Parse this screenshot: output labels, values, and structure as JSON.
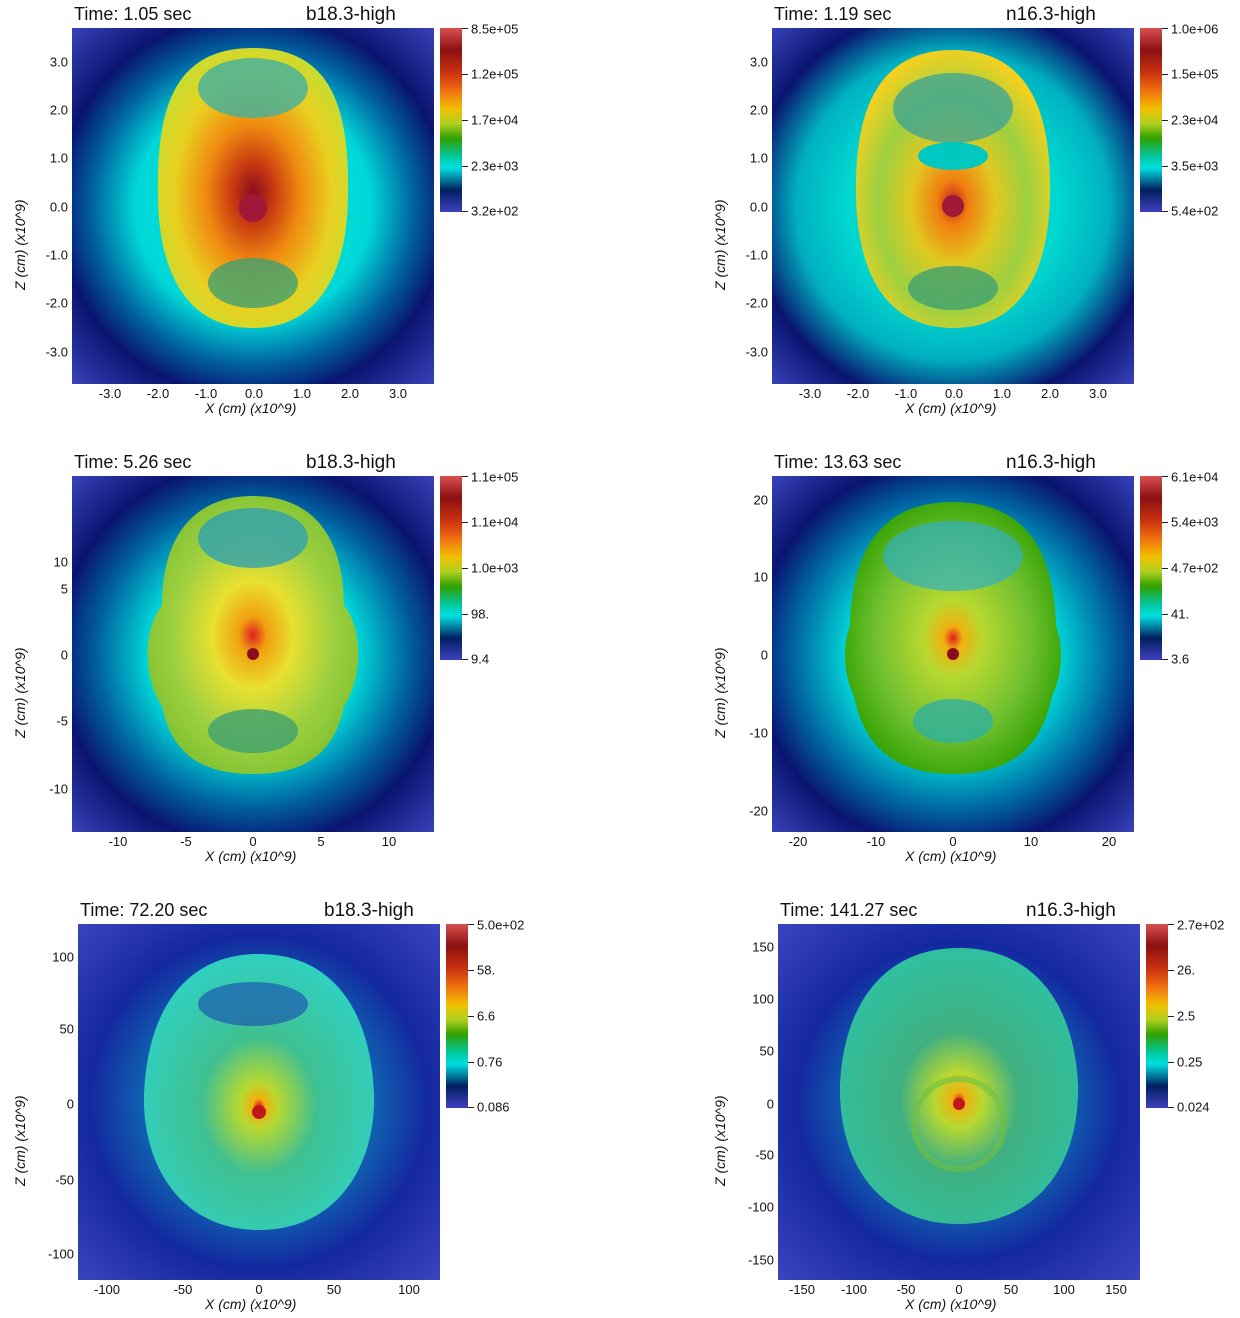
{
  "panels": [
    {
      "time": "Time: 1.05 sec",
      "model": "b18.3-high",
      "xlabel": "X (cm)  (x10^9)",
      "ylabel": "Z (cm)  (x10^9)",
      "xticks": [
        "-3.0",
        "-2.0",
        "-1.0",
        "0.0",
        "1.0",
        "2.0",
        "3.0"
      ],
      "yticks": [
        "3.0",
        "2.0",
        "1.0",
        "0.0",
        "-1.0",
        "-2.0",
        "-3.0"
      ],
      "colorbar": [
        "8.5e+05",
        "1.2e+05",
        "1.7e+04",
        "2.3e+03",
        "3.2e+02"
      ]
    },
    {
      "time": "Time: 1.19 sec",
      "model": "n16.3-high",
      "xlabel": "X (cm)  (x10^9)",
      "ylabel": "Z (cm)  (x10^9)",
      "xticks": [
        "-3.0",
        "-2.0",
        "-1.0",
        "0.0",
        "1.0",
        "2.0",
        "3.0"
      ],
      "yticks": [
        "3.0",
        "2.0",
        "1.0",
        "0.0",
        "-1.0",
        "-2.0",
        "-3.0"
      ],
      "colorbar": [
        "1.0e+06",
        "1.5e+05",
        "2.3e+04",
        "3.5e+03",
        "5.4e+02"
      ]
    },
    {
      "time": "Time: 5.26 sec",
      "model": "b18.3-high",
      "xlabel": "X (cm)  (x10^9)",
      "ylabel": "Z (cm)  (x10^9)",
      "xticks": [
        "-10",
        "-5",
        "0",
        "5",
        "10"
      ],
      "yticks": [
        "10",
        "5",
        "0",
        "-5",
        "-10"
      ],
      "colorbar": [
        "1.1e+05",
        "1.1e+04",
        "1.0e+03",
        "98.",
        "9.4"
      ]
    },
    {
      "time": "Time: 13.63 sec",
      "model": "n16.3-high",
      "xlabel": "X (cm)  (x10^9)",
      "ylabel": "Z (cm)  (x10^9)",
      "xticks": [
        "-20",
        "-10",
        "0",
        "10",
        "20"
      ],
      "yticks": [
        "20",
        "10",
        "0",
        "-10",
        "-20"
      ],
      "colorbar": [
        "6.1e+04",
        "5.4e+03",
        "4.7e+02",
        "41.",
        "3.6"
      ]
    },
    {
      "time": "Time: 72.20 sec",
      "model": "b18.3-high",
      "xlabel": "X (cm)  (x10^9)",
      "ylabel": "Z (cm)  (x10^9)",
      "xticks": [
        "-100",
        "-50",
        "0",
        "50",
        "100"
      ],
      "yticks": [
        "100",
        "50",
        "0",
        "-50",
        "-100"
      ],
      "colorbar": [
        "5.0e+02",
        "58.",
        "6.6",
        "0.76",
        "0.086"
      ]
    },
    {
      "time": "Time: 141.27 sec",
      "model": "n16.3-high",
      "xlabel": "X (cm)  (x10^9)",
      "ylabel": "Z (cm)  (x10^9)",
      "xticks": [
        "-150",
        "-100",
        "-50",
        "0",
        "50",
        "100",
        "150"
      ],
      "yticks": [
        "150",
        "100",
        "50",
        "0",
        "-50",
        "-100",
        "-150"
      ],
      "colorbar": [
        "2.7e+02",
        "26.",
        "2.5",
        "0.25",
        "0.024"
      ]
    }
  ]
}
